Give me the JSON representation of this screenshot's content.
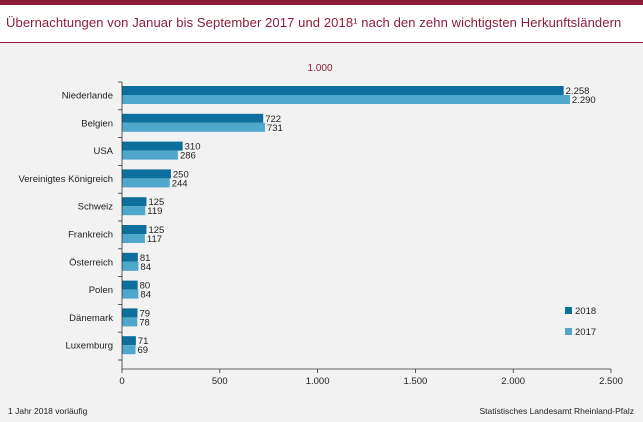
{
  "title": "Übernachtungen von Januar bis September 2017 und 2018¹ nach den zehn wichtigsten Herkunftsländern",
  "footnote": "1 Jahr 2018 vorläufig",
  "source": "Statistisches Landesamt Rheinland-Pfalz",
  "chart_data": {
    "type": "bar",
    "orientation": "horizontal",
    "unit_label": "1.000",
    "categories": [
      "Niederlande",
      "Belgien",
      "USA",
      "Vereinigtes Königreich",
      "Schweiz",
      "Frankreich",
      "Österreich",
      "Polen",
      "Dänemark",
      "Luxemburg"
    ],
    "series": [
      {
        "name": "2018",
        "values": [
          2258,
          722,
          310,
          250,
          125,
          125,
          81,
          80,
          79,
          71
        ],
        "labels": [
          "2.258",
          "722",
          "310",
          "250",
          "125",
          "125",
          "81",
          "80",
          "79",
          "71"
        ]
      },
      {
        "name": "2017",
        "values": [
          2290,
          731,
          286,
          244,
          119,
          117,
          84,
          84,
          78,
          69
        ],
        "labels": [
          "2.290",
          "731",
          "286",
          "244",
          "119",
          "117",
          "84",
          "84",
          "78",
          "69"
        ]
      }
    ],
    "xlim": [
      0,
      2500
    ],
    "x_ticks": [
      0,
      500,
      1000,
      1500,
      2000,
      2500
    ],
    "x_tick_labels": [
      "0",
      "500",
      "1.000",
      "1.500",
      "2.000",
      "2.500"
    ],
    "grid": false,
    "legend_position": "bottom-right",
    "colors": {
      "2018": "#0e6e9c",
      "2017": "#4fa7cc",
      "title": "#8c1c3a",
      "axis": "#333333"
    }
  }
}
